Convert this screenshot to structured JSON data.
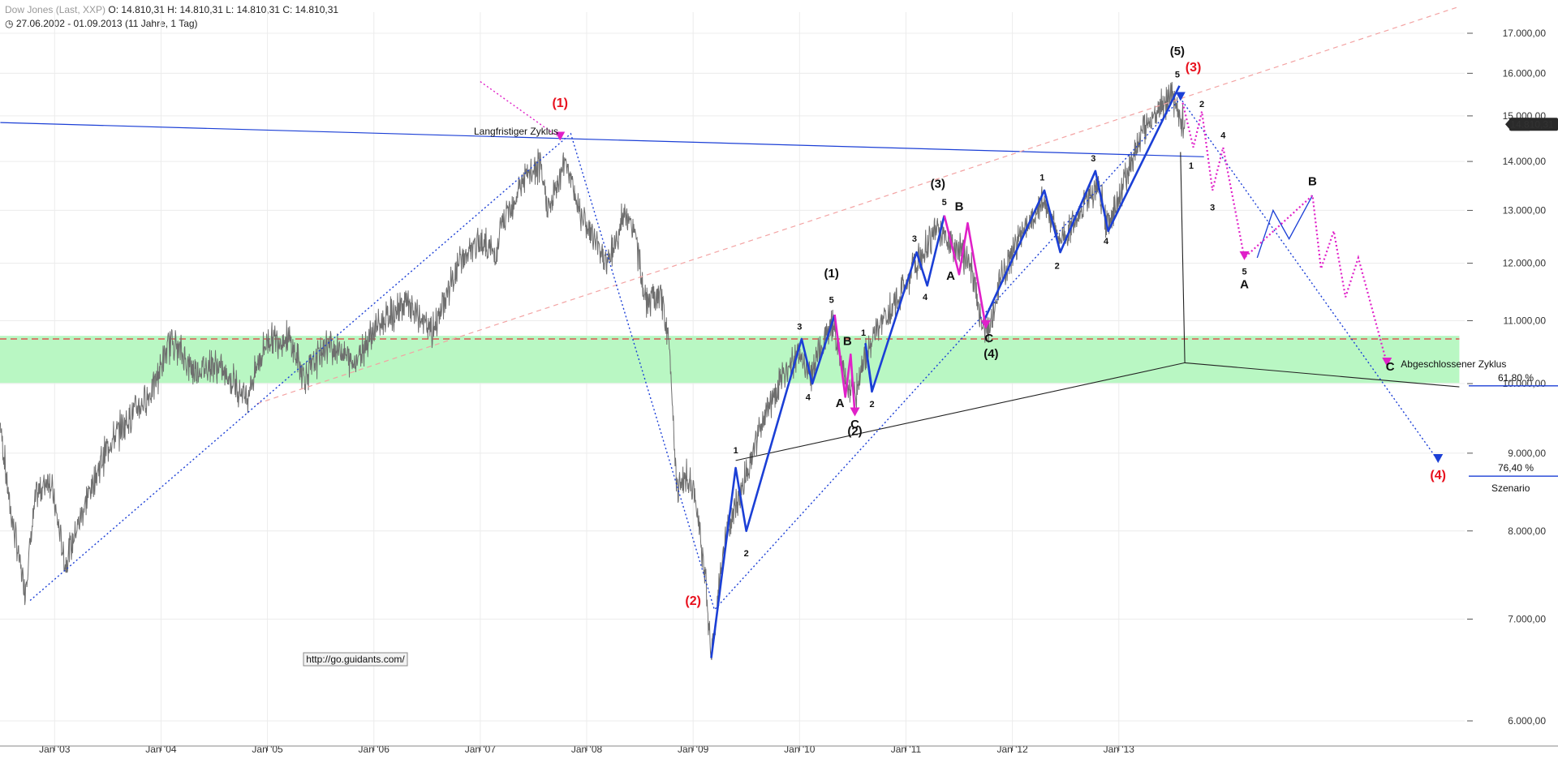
{
  "header": {
    "symbol_line": "Dow Jones (Last, XXP)",
    "ohlc": {
      "o_label": "O:",
      "o": "14.810,31",
      "h_label": "H:",
      "h": "14.810,31",
      "l_label": "L:",
      "l": "14.810,31",
      "c_label": "C:",
      "c": "14.810,31"
    },
    "range": "27.06.2002 - 01.09.2013 (11 Jahre, 1 Tag)"
  },
  "watermark": "http://go.guidants.com/",
  "colors": {
    "price": "#6e6e6e",
    "wave_blue": "#1b3fd6",
    "wave_magenta": "#e020c8",
    "label_red": "#e8101d",
    "zone_green": "#b9f7c3",
    "resistance_red": "#e23a3a",
    "trend_pink": "#f3a3a3",
    "badge_bg": "#2a2a2a"
  },
  "chart_data": {
    "type": "line",
    "scale": "log",
    "ylim": [
      5900,
      17600
    ],
    "xlim": [
      "2002-06-27",
      "2013-09-01"
    ],
    "x_ticks": [
      "Jan '03",
      "Jan '04",
      "Jan '05",
      "Jan '06",
      "Jan '07",
      "Jan '08",
      "Jan '09",
      "Jan '10",
      "Jan '11",
      "Jan '12",
      "Jan '13"
    ],
    "y_ticks": [
      {
        "value": 6000,
        "label": "6.000,00"
      },
      {
        "value": 7000,
        "label": "7.000,00"
      },
      {
        "value": 8000,
        "label": "8.000,00"
      },
      {
        "value": 9000,
        "label": "9.000,00"
      },
      {
        "value": 10000,
        "label": "10.000,00"
      },
      {
        "value": 11000,
        "label": "11.000,00"
      },
      {
        "value": 12000,
        "label": "12.000,00"
      },
      {
        "value": 13000,
        "label": "13.000,00"
      },
      {
        "value": 14000,
        "label": "14.000,00"
      },
      {
        "value": 15000,
        "label": "15.000,00"
      },
      {
        "value": 16000,
        "label": "16.000,00"
      },
      {
        "value": 17000,
        "label": "17.000,00"
      }
    ],
    "last_price": {
      "value": 14810.31,
      "label": "14.810,31"
    },
    "price_series": [
      {
        "x": 2002.49,
        "y": 9400
      },
      {
        "x": 2002.58,
        "y": 8300
      },
      {
        "x": 2002.72,
        "y": 7300
      },
      {
        "x": 2002.82,
        "y": 8400
      },
      {
        "x": 2002.95,
        "y": 8700
      },
      {
        "x": 2003.1,
        "y": 7600
      },
      {
        "x": 2003.3,
        "y": 8400
      },
      {
        "x": 2003.5,
        "y": 9100
      },
      {
        "x": 2003.7,
        "y": 9500
      },
      {
        "x": 2003.9,
        "y": 9850
      },
      {
        "x": 2004.1,
        "y": 10700
      },
      {
        "x": 2004.3,
        "y": 10200
      },
      {
        "x": 2004.5,
        "y": 10300
      },
      {
        "x": 2004.7,
        "y": 10000
      },
      {
        "x": 2004.8,
        "y": 9800
      },
      {
        "x": 2005.0,
        "y": 10700
      },
      {
        "x": 2005.2,
        "y": 10700
      },
      {
        "x": 2005.35,
        "y": 10100
      },
      {
        "x": 2005.55,
        "y": 10600
      },
      {
        "x": 2005.7,
        "y": 10500
      },
      {
        "x": 2005.8,
        "y": 10300
      },
      {
        "x": 2006.0,
        "y": 10850
      },
      {
        "x": 2006.3,
        "y": 11300
      },
      {
        "x": 2006.45,
        "y": 11000
      },
      {
        "x": 2006.55,
        "y": 10800
      },
      {
        "x": 2006.8,
        "y": 12000
      },
      {
        "x": 2007.0,
        "y": 12400
      },
      {
        "x": 2007.15,
        "y": 12150
      },
      {
        "x": 2007.2,
        "y": 12700
      },
      {
        "x": 2007.4,
        "y": 13600
      },
      {
        "x": 2007.55,
        "y": 13900
      },
      {
        "x": 2007.65,
        "y": 13000
      },
      {
        "x": 2007.8,
        "y": 14100
      },
      {
        "x": 2007.9,
        "y": 13200
      },
      {
        "x": 2008.05,
        "y": 12500
      },
      {
        "x": 2008.2,
        "y": 12000
      },
      {
        "x": 2008.35,
        "y": 12900
      },
      {
        "x": 2008.45,
        "y": 12600
      },
      {
        "x": 2008.55,
        "y": 11300
      },
      {
        "x": 2008.7,
        "y": 11400
      },
      {
        "x": 2008.78,
        "y": 10500
      },
      {
        "x": 2008.85,
        "y": 8500
      },
      {
        "x": 2008.95,
        "y": 8700
      },
      {
        "x": 2009.05,
        "y": 8200
      },
      {
        "x": 2009.12,
        "y": 7400
      },
      {
        "x": 2009.17,
        "y": 6600
      },
      {
        "x": 2009.3,
        "y": 7900
      },
      {
        "x": 2009.45,
        "y": 8500
      },
      {
        "x": 2009.6,
        "y": 9200
      },
      {
        "x": 2009.8,
        "y": 10000
      },
      {
        "x": 2010.0,
        "y": 10500
      },
      {
        "x": 2010.1,
        "y": 10100
      },
      {
        "x": 2010.3,
        "y": 11000
      },
      {
        "x": 2010.45,
        "y": 10000
      },
      {
        "x": 2010.52,
        "y": 9800
      },
      {
        "x": 2010.6,
        "y": 10400
      },
      {
        "x": 2010.75,
        "y": 10900
      },
      {
        "x": 2010.9,
        "y": 11300
      },
      {
        "x": 2011.1,
        "y": 12000
      },
      {
        "x": 2011.3,
        "y": 12700
      },
      {
        "x": 2011.45,
        "y": 12300
      },
      {
        "x": 2011.6,
        "y": 12100
      },
      {
        "x": 2011.7,
        "y": 11000
      },
      {
        "x": 2011.78,
        "y": 10800
      },
      {
        "x": 2011.9,
        "y": 11800
      },
      {
        "x": 2012.1,
        "y": 12600
      },
      {
        "x": 2012.3,
        "y": 13200
      },
      {
        "x": 2012.45,
        "y": 12400
      },
      {
        "x": 2012.65,
        "y": 13000
      },
      {
        "x": 2012.8,
        "y": 13500
      },
      {
        "x": 2012.9,
        "y": 12700
      },
      {
        "x": 2013.0,
        "y": 13300
      },
      {
        "x": 2013.2,
        "y": 14500
      },
      {
        "x": 2013.35,
        "y": 15100
      },
      {
        "x": 2013.5,
        "y": 15500
      },
      {
        "x": 2013.56,
        "y": 15000
      },
      {
        "x": 2013.62,
        "y": 14810
      }
    ],
    "support_zone": {
      "from": 10010,
      "to": 10750
    },
    "resistance_level": 10700,
    "fib_levels": [
      {
        "label": "61,80 %",
        "value": 10090
      },
      {
        "label": "76,40 %",
        "value": 8800
      }
    ],
    "scenario_label": "Szenario",
    "trendlines": {
      "long_cycle": [
        {
          "x": 2002.49,
          "y": 14850
        },
        {
          "x": 2013.8,
          "y": 14100
        }
      ],
      "pink_channel": [
        {
          "x": 2004.9,
          "y": 9700
        },
        {
          "x": 2016.2,
          "y": 17700
        }
      ],
      "triangle": [
        {
          "x": 2009.4,
          "y": 8900
        },
        {
          "x": 2013.62,
          "y": 10320
        },
        {
          "x": 2016.2,
          "y": 9950
        }
      ],
      "triangle_apex_top": {
        "x": 2013.58,
        "y": 14200
      }
    },
    "wave_blue_1": [
      {
        "x": 2009.17,
        "y": 6600
      },
      {
        "x": 2009.4,
        "y": 8800
      },
      {
        "x": 2009.5,
        "y": 8000
      },
      {
        "x": 2010.02,
        "y": 10700
      },
      {
        "x": 2010.12,
        "y": 10000
      },
      {
        "x": 2010.33,
        "y": 11100
      }
    ],
    "wave_blue_3": [
      {
        "x": 2010.68,
        "y": 9920
      },
      {
        "x": 2010.62,
        "y": 10620
      },
      {
        "x": 2010.68,
        "y": 9880
      },
      {
        "x": 2011.1,
        "y": 12200
      },
      {
        "x": 2011.2,
        "y": 11600
      },
      {
        "x": 2011.36,
        "y": 12900
      }
    ],
    "wave_blue_5": [
      {
        "x": 2011.72,
        "y": 10950
      },
      {
        "x": 2012.3,
        "y": 13400
      },
      {
        "x": 2012.45,
        "y": 12200
      },
      {
        "x": 2012.78,
        "y": 13800
      },
      {
        "x": 2012.9,
        "y": 12600
      },
      {
        "x": 2013.57,
        "y": 15700
      }
    ],
    "wave_blue_fut_b": [
      {
        "x": 2014.3,
        "y": 12100
      },
      {
        "x": 2014.45,
        "y": 13000
      },
      {
        "x": 2014.6,
        "y": 12450
      },
      {
        "x": 2014.82,
        "y": 13300
      }
    ],
    "wave_magenta_2": [
      {
        "x": 2010.33,
        "y": 11100
      },
      {
        "x": 2010.43,
        "y": 9800
      },
      {
        "x": 2010.48,
        "y": 10450
      },
      {
        "x": 2010.52,
        "y": 9550
      }
    ],
    "wave_magenta_4": [
      {
        "x": 2011.36,
        "y": 12900
      },
      {
        "x": 2011.5,
        "y": 11800
      },
      {
        "x": 2011.58,
        "y": 12750
      },
      {
        "x": 2011.75,
        "y": 10900
      }
    ],
    "future_path": [
      {
        "x": 2013.6,
        "y": 15300
      },
      {
        "x": 2013.7,
        "y": 14300
      },
      {
        "x": 2013.78,
        "y": 15100
      },
      {
        "x": 2013.88,
        "y": 13400
      },
      {
        "x": 2013.98,
        "y": 14300
      },
      {
        "x": 2014.18,
        "y": 12100
      },
      {
        "x": 2014.82,
        "y": 13300
      },
      {
        "x": 2014.9,
        "y": 11900
      },
      {
        "x": 2015.02,
        "y": 12600
      },
      {
        "x": 2015.13,
        "y": 11400
      },
      {
        "x": 2015.25,
        "y": 12100
      },
      {
        "x": 2015.52,
        "y": 10300
      }
    ],
    "dotted_blue": [
      {
        "x": 2002.77,
        "y": 7200
      },
      {
        "x": 2007.85,
        "y": 14600
      },
      {
        "x": 2009.2,
        "y": 7100
      },
      {
        "x": 2013.58,
        "y": 15400
      },
      {
        "x": 2016.0,
        "y": 8900
      }
    ],
    "annotations": [
      {
        "text": "Langfristiger Zyklus",
        "x": 2006.94,
        "y": 14580
      },
      {
        "text": "Abgeschlossener Zyklus",
        "x": 2015.65,
        "y": 10250
      }
    ],
    "wave_labels": [
      {
        "text": "(1)",
        "x": 2007.75,
        "y": 15200,
        "style": "red"
      },
      {
        "text": "(2)",
        "x": 2009.0,
        "y": 7150,
        "style": "red"
      },
      {
        "text": "(3)",
        "x": 2013.7,
        "y": 16050,
        "style": "red"
      },
      {
        "text": "(4)",
        "x": 2016.0,
        "y": 8650,
        "style": "red"
      },
      {
        "text": "(5)",
        "x": 2013.55,
        "y": 16450,
        "style": "black"
      },
      {
        "text": "(1)",
        "x": 2010.3,
        "y": 11750,
        "style": "black"
      },
      {
        "text": "(2)",
        "x": 2010.52,
        "y": 9250,
        "style": "black"
      },
      {
        "text": "(3)",
        "x": 2011.3,
        "y": 13450,
        "style": "black"
      },
      {
        "text": "(4)",
        "x": 2011.8,
        "y": 10400,
        "style": "black"
      },
      {
        "text": "A",
        "x": 2010.38,
        "y": 9650,
        "style": "black"
      },
      {
        "text": "B",
        "x": 2010.45,
        "y": 10600,
        "style": "black"
      },
      {
        "text": "C",
        "x": 2010.52,
        "y": 9350,
        "style": "black"
      },
      {
        "text": "A",
        "x": 2011.42,
        "y": 11700,
        "style": "black"
      },
      {
        "text": "B",
        "x": 2011.5,
        "y": 13000,
        "style": "black"
      },
      {
        "text": "C",
        "x": 2011.78,
        "y": 10650,
        "style": "black"
      },
      {
        "text": "A",
        "x": 2014.18,
        "y": 11550,
        "style": "black"
      },
      {
        "text": "B",
        "x": 2014.82,
        "y": 13500,
        "style": "black"
      },
      {
        "text": "C",
        "x": 2015.55,
        "y": 10200,
        "style": "black"
      },
      {
        "text": "1",
        "x": 2009.4,
        "y": 9000,
        "style": "small"
      },
      {
        "text": "2",
        "x": 2009.5,
        "y": 7700,
        "style": "small"
      },
      {
        "text": "3",
        "x": 2010.0,
        "y": 10850,
        "style": "small"
      },
      {
        "text": "4",
        "x": 2010.08,
        "y": 9750,
        "style": "small"
      },
      {
        "text": "5",
        "x": 2010.3,
        "y": 11300,
        "style": "small"
      },
      {
        "text": "1",
        "x": 2010.6,
        "y": 10750,
        "style": "small"
      },
      {
        "text": "2",
        "x": 2010.68,
        "y": 9650,
        "style": "small"
      },
      {
        "text": "3",
        "x": 2011.08,
        "y": 12400,
        "style": "small"
      },
      {
        "text": "4",
        "x": 2011.18,
        "y": 11350,
        "style": "small"
      },
      {
        "text": "5",
        "x": 2011.36,
        "y": 13100,
        "style": "small"
      },
      {
        "text": "1",
        "x": 2012.28,
        "y": 13600,
        "style": "small"
      },
      {
        "text": "2",
        "x": 2012.42,
        "y": 11900,
        "style": "small"
      },
      {
        "text": "3",
        "x": 2012.76,
        "y": 14000,
        "style": "small"
      },
      {
        "text": "4",
        "x": 2012.88,
        "y": 12350,
        "style": "small"
      },
      {
        "text": "5",
        "x": 2013.55,
        "y": 15900,
        "style": "small"
      },
      {
        "text": "1",
        "x": 2013.68,
        "y": 13850,
        "style": "small"
      },
      {
        "text": "2",
        "x": 2013.78,
        "y": 15200,
        "style": "small"
      },
      {
        "text": "3",
        "x": 2013.88,
        "y": 13000,
        "style": "small"
      },
      {
        "text": "4",
        "x": 2013.98,
        "y": 14500,
        "style": "small"
      },
      {
        "text": "5",
        "x": 2014.18,
        "y": 11800,
        "style": "small"
      }
    ],
    "arrows": [
      {
        "x": 2007.75,
        "y": 14500,
        "color": "magenta"
      },
      {
        "x": 2010.52,
        "y": 9550,
        "color": "magenta"
      },
      {
        "x": 2011.75,
        "y": 10900,
        "color": "magenta"
      },
      {
        "x": 2014.18,
        "y": 12100,
        "color": "magenta"
      },
      {
        "x": 2015.52,
        "y": 10300,
        "color": "magenta"
      },
      {
        "x": 2013.58,
        "y": 15400,
        "color": "blue"
      },
      {
        "x": 2016.0,
        "y": 8900,
        "color": "blue"
      }
    ]
  }
}
